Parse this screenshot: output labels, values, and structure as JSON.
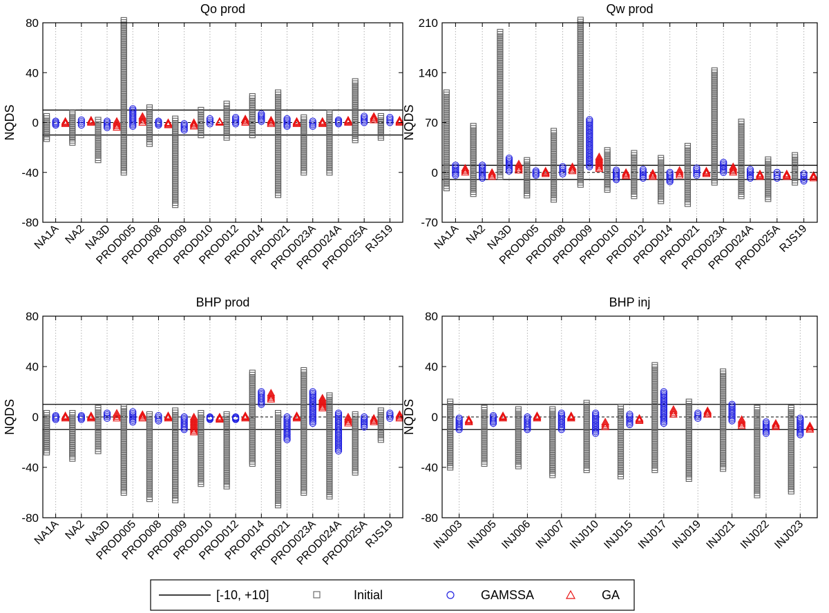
{
  "legend": {
    "band_label": "[-10, +10]",
    "initial_label": "Initial",
    "gamssa_label": "GAMSSA",
    "ga_label": "GA"
  },
  "colors": {
    "initial": "#5f5f5f",
    "gamssa": "#1f1fe0",
    "ga": "#e81212",
    "band": "#000000",
    "grid": "#b0b0b0"
  },
  "chart_data": [
    {
      "type": "scatter",
      "title": "Qo prod",
      "ylabel": "NQDS",
      "ylim": [
        -80,
        80
      ],
      "yticks": [
        -80,
        -40,
        0,
        40,
        80
      ],
      "band": [
        -10,
        10
      ],
      "categories": [
        "NA1A",
        "NA2",
        "NA3D",
        "PROD005",
        "PROD008",
        "PROD009",
        "PROD010",
        "PROD012",
        "PROD014",
        "PROD021",
        "PROD023A",
        "PROD024A",
        "PROD025A",
        "RJS19"
      ],
      "series": [
        {
          "name": "Initial",
          "ranges": [
            [
              -13,
              5
            ],
            [
              -16,
              8
            ],
            [
              -30,
              2
            ],
            [
              -40,
              82
            ],
            [
              -17,
              12
            ],
            [
              -66,
              3
            ],
            [
              -10,
              10
            ],
            [
              -12,
              15
            ],
            [
              -10,
              21
            ],
            [
              -58,
              24
            ],
            [
              -40,
              4
            ],
            [
              -40,
              8
            ],
            [
              -14,
              33
            ],
            [
              -12,
              5
            ]
          ]
        },
        {
          "name": "GAMSSA",
          "ranges": [
            [
              -2,
              1
            ],
            [
              -2,
              2
            ],
            [
              -4,
              1
            ],
            [
              -3,
              11
            ],
            [
              -2,
              1
            ],
            [
              -6,
              -1
            ],
            [
              -1,
              3
            ],
            [
              -1,
              4
            ],
            [
              1,
              7
            ],
            [
              -3,
              3
            ],
            [
              -3,
              1
            ],
            [
              -1,
              2
            ],
            [
              0,
              5
            ],
            [
              0,
              4
            ]
          ]
        },
        {
          "name": "GA",
          "ranges": [
            [
              -1,
              1
            ],
            [
              0,
              2
            ],
            [
              -4,
              1
            ],
            [
              0,
              5
            ],
            [
              -2,
              0
            ],
            [
              -3,
              0
            ],
            [
              0,
              1
            ],
            [
              0,
              3
            ],
            [
              -1,
              2
            ],
            [
              -1,
              1
            ],
            [
              -1,
              1
            ],
            [
              0,
              2
            ],
            [
              2,
              5
            ],
            [
              0,
              2
            ]
          ]
        }
      ]
    },
    {
      "type": "scatter",
      "title": "Qw prod",
      "ylabel": "NQDS",
      "ylim": [
        -70,
        210
      ],
      "yticks": [
        -70,
        0,
        70,
        140,
        210
      ],
      "band": [
        -10,
        10
      ],
      "categories": [
        "NA1A",
        "NA2",
        "NA3D",
        "PROD005",
        "PROD008",
        "PROD009",
        "PROD010",
        "PROD012",
        "PROD014",
        "PROD021",
        "PROD023A",
        "PROD024A",
        "PROD025A",
        "RJS19"
      ],
      "series": [
        {
          "name": "Initial",
          "ranges": [
            [
              -22,
              112
            ],
            [
              -30,
              65
            ],
            [
              -6,
              197
            ],
            [
              -32,
              17
            ],
            [
              -38,
              58
            ],
            [
              -17,
              214
            ],
            [
              -24,
              31
            ],
            [
              -33,
              27
            ],
            [
              -40,
              20
            ],
            [
              -44,
              37
            ],
            [
              -14,
              143
            ],
            [
              -33,
              71
            ],
            [
              -37,
              18
            ],
            [
              -14,
              24
            ]
          ]
        },
        {
          "name": "GAMSSA",
          "ranges": [
            [
              -4,
              10
            ],
            [
              -8,
              10
            ],
            [
              2,
              20
            ],
            [
              -4,
              2
            ],
            [
              -2,
              8
            ],
            [
              8,
              74
            ],
            [
              -10,
              3
            ],
            [
              -8,
              4
            ],
            [
              -13,
              0
            ],
            [
              -4,
              6
            ],
            [
              0,
              14
            ],
            [
              -8,
              4
            ],
            [
              -8,
              0
            ],
            [
              -12,
              -2
            ]
          ]
        },
        {
          "name": "GA",
          "ranges": [
            [
              0,
              6
            ],
            [
              -6,
              0
            ],
            [
              3,
              12
            ],
            [
              -2,
              2
            ],
            [
              2,
              8
            ],
            [
              5,
              22
            ],
            [
              -5,
              0
            ],
            [
              -6,
              -1
            ],
            [
              -4,
              3
            ],
            [
              -2,
              2
            ],
            [
              0,
              8
            ],
            [
              -6,
              -2
            ],
            [
              -6,
              -2
            ],
            [
              -8,
              -4
            ]
          ]
        }
      ]
    },
    {
      "type": "scatter",
      "title": "BHP prod",
      "ylabel": "NQDS",
      "ylim": [
        -80,
        80
      ],
      "yticks": [
        -80,
        -40,
        0,
        40,
        80
      ],
      "band": [
        -10,
        10
      ],
      "categories": [
        "NA1A",
        "NA2",
        "NA3D",
        "PROD005",
        "PROD008",
        "PROD009",
        "PROD010",
        "PROD012",
        "PROD014",
        "PROD021",
        "PROD023A",
        "PROD024A",
        "PROD025A",
        "RJS19"
      ],
      "series": [
        {
          "name": "Initial",
          "ranges": [
            [
              -28,
              3
            ],
            [
              -33,
              3
            ],
            [
              -27,
              7
            ],
            [
              -60,
              8
            ],
            [
              -65,
              2
            ],
            [
              -66,
              5
            ],
            [
              -53,
              3
            ],
            [
              -55,
              2
            ],
            [
              -37,
              35
            ],
            [
              -70,
              3
            ],
            [
              -60,
              37
            ],
            [
              -63,
              17
            ],
            [
              -44,
              2
            ],
            [
              -18,
              5
            ]
          ]
        },
        {
          "name": "GAMSSA",
          "ranges": [
            [
              -2,
              1
            ],
            [
              -2,
              1
            ],
            [
              -1,
              3
            ],
            [
              -4,
              4
            ],
            [
              -3,
              1
            ],
            [
              -10,
              0
            ],
            [
              -2,
              0
            ],
            [
              -2,
              0
            ],
            [
              10,
              20
            ],
            [
              -18,
              0
            ],
            [
              -5,
              20
            ],
            [
              -27,
              3
            ],
            [
              -8,
              0
            ],
            [
              -1,
              3
            ]
          ]
        },
        {
          "name": "GA",
          "ranges": [
            [
              -1,
              1
            ],
            [
              -1,
              1
            ],
            [
              -1,
              3
            ],
            [
              -1,
              2
            ],
            [
              -1,
              1
            ],
            [
              -12,
              0
            ],
            [
              -2,
              0
            ],
            [
              -1,
              1
            ],
            [
              14,
              19
            ],
            [
              -1,
              1
            ],
            [
              7,
              15
            ],
            [
              -5,
              0
            ],
            [
              -4,
              -1
            ],
            [
              -1,
              2
            ]
          ]
        }
      ]
    },
    {
      "type": "scatter",
      "title": "BHP inj",
      "ylabel": "NQDS",
      "ylim": [
        -80,
        80
      ],
      "yticks": [
        -80,
        -40,
        0,
        40,
        80
      ],
      "band": [
        -10,
        10
      ],
      "categories": [
        "INJ003",
        "INJ005",
        "INJ006",
        "INJ007",
        "INJ010",
        "INJ015",
        "INJ017",
        "INJ019",
        "INJ021",
        "INJ022",
        "INJ023"
      ],
      "series": [
        {
          "name": "Initial",
          "ranges": [
            [
              -40,
              12
            ],
            [
              -37,
              7
            ],
            [
              -39,
              6
            ],
            [
              -46,
              6
            ],
            [
              -42,
              11
            ],
            [
              -47,
              8
            ],
            [
              -42,
              41
            ],
            [
              -49,
              12
            ],
            [
              -41,
              36
            ],
            [
              -62,
              7
            ],
            [
              -59,
              7
            ]
          ]
        },
        {
          "name": "GAMSSA",
          "ranges": [
            [
              -10,
              -1
            ],
            [
              -5,
              1
            ],
            [
              -10,
              0
            ],
            [
              -10,
              3
            ],
            [
              -13,
              3
            ],
            [
              -6,
              2
            ],
            [
              -5,
              20
            ],
            [
              -1,
              3
            ],
            [
              -3,
              10
            ],
            [
              -13,
              -4
            ],
            [
              -14,
              -1
            ]
          ]
        },
        {
          "name": "GA",
          "ranges": [
            [
              -4,
              -2
            ],
            [
              -1,
              1
            ],
            [
              -1,
              1
            ],
            [
              -1,
              1
            ],
            [
              -8,
              -4
            ],
            [
              -3,
              -1
            ],
            [
              2,
              6
            ],
            [
              2,
              5
            ],
            [
              -7,
              -2
            ],
            [
              -8,
              -5
            ],
            [
              -10,
              -7
            ]
          ]
        }
      ]
    }
  ]
}
